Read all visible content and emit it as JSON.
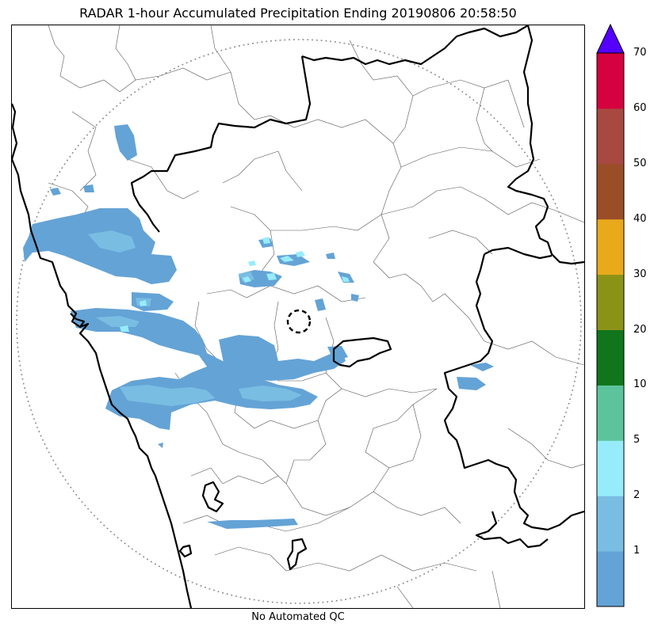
{
  "title": "RADAR 1-hour Accumulated Precipitation Ending 20190806 20:58:50",
  "footer_label": "No Automated QC",
  "colorbar": {
    "extend": "max",
    "tick_labels": [
      "1",
      "2",
      "5",
      "10",
      "20",
      "30",
      "40",
      "50",
      "60",
      "70"
    ],
    "bins": [
      {
        "from": 0,
        "to": 1,
        "color": "#64a3d6"
      },
      {
        "from": 1,
        "to": 2,
        "color": "#79bde2"
      },
      {
        "from": 2,
        "to": 5,
        "color": "#97ecfb"
      },
      {
        "from": 5,
        "to": 10,
        "color": "#5cc49c"
      },
      {
        "from": 10,
        "to": 20,
        "color": "#10751b"
      },
      {
        "from": 20,
        "to": 30,
        "color": "#8b9317"
      },
      {
        "from": 30,
        "to": 40,
        "color": "#e8aa1a"
      },
      {
        "from": 40,
        "to": 50,
        "color": "#9a4e28"
      },
      {
        "from": 50,
        "to": 60,
        "color": "#a84941"
      },
      {
        "from": 60,
        "to": 70,
        "color": "#d5023f"
      }
    ],
    "over_color": "#5500ff"
  },
  "map": {
    "range_ring_style": "dotted",
    "radar_marker_style": "dashed-circle",
    "precip_colors": {
      "light": "#64a3d6",
      "moderate": "#79bde2",
      "heavy": "#97ecfb"
    }
  }
}
